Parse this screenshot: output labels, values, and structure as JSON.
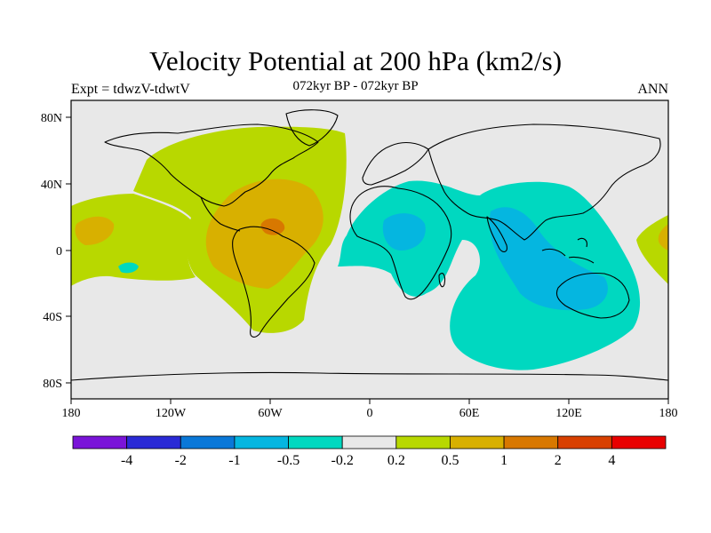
{
  "title": "Velocity Potential at 200 hPa (km2/s)",
  "subtitle": "072kyr BP - 072kyr BP",
  "left_label": "Expt = tdwzV-tdwtV",
  "right_label": "ANN",
  "map": {
    "lat_ticks": [
      "80N",
      "40N",
      "0",
      "40S",
      "80S"
    ],
    "lon_ticks": [
      "180",
      "120W",
      "60W",
      "0",
      "60E",
      "120E",
      "180"
    ],
    "background_color": "#e8e8e8"
  },
  "colorbar": {
    "colors": [
      "#7a14d8",
      "#2a2ad6",
      "#0a78d8",
      "#05b6e0",
      "#00d8c0",
      "#e8e8e8",
      "#b8d800",
      "#d8b000",
      "#d87800",
      "#d84000",
      "#e80000"
    ],
    "labels": [
      "-4",
      "-2",
      "-1",
      "-0.5",
      "-0.2",
      "0.2",
      "0.5",
      "1",
      "2",
      "4"
    ]
  }
}
